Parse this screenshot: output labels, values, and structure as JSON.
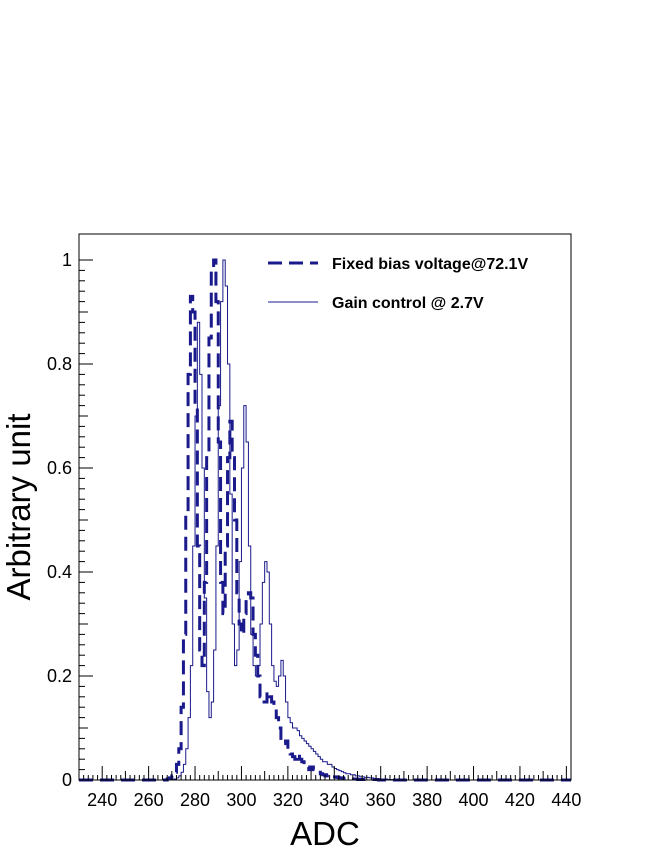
{
  "chart_data": {
    "type": "line",
    "xlabel": "ADC",
    "ylabel": "Arbitrary unit",
    "xlim": [
      230,
      442
    ],
    "ylim": [
      0,
      1.05
    ],
    "xticks": [
      "240",
      "260",
      "280",
      "300",
      "320",
      "340",
      "360",
      "380",
      "400",
      "420",
      "440"
    ],
    "yticks": [
      "0",
      "0.2",
      "0.4",
      "0.6",
      "0.8",
      "1"
    ],
    "grid": false,
    "legend_position": "top-right",
    "bin_width": 1,
    "series": [
      {
        "name": "Fixed bias voltage@72.1V",
        "style": "dashed",
        "color": "#1a1a8c",
        "x_start": 230,
        "values": [
          0,
          0,
          0,
          0,
          0,
          0,
          0,
          0,
          0,
          0,
          0,
          0,
          0,
          0,
          0,
          0,
          0,
          0,
          0,
          0,
          0,
          0,
          0,
          0,
          0,
          0,
          0,
          0,
          0,
          0,
          0,
          0,
          0,
          0,
          0,
          0,
          0,
          0,
          0.002,
          0.004,
          0.008,
          0.015,
          0.03,
          0.06,
          0.14,
          0.28,
          0.52,
          0.78,
          0.93,
          0.9,
          0.72,
          0.45,
          0.25,
          0.22,
          0.38,
          0.62,
          0.85,
          0.98,
          1.0,
          0.92,
          0.65,
          0.38,
          0.32,
          0.45,
          0.62,
          0.69,
          0.62,
          0.5,
          0.36,
          0.3,
          0.28,
          0.32,
          0.35,
          0.36,
          0.35,
          0.28,
          0.24,
          0.2,
          0.16,
          0.15,
          0.15,
          0.17,
          0.16,
          0.15,
          0.14,
          0.12,
          0.1,
          0.08,
          0.07,
          0.075,
          0.06,
          0.05,
          0.045,
          0.04,
          0.05,
          0.04,
          0.035,
          0.03,
          0.025,
          0.02,
          0.025,
          0.02,
          0.015,
          0.015,
          0.012,
          0.01,
          0.008,
          0.01,
          0.008,
          0.006,
          0.006,
          0.005,
          0.004,
          0.004,
          0.003,
          0.003,
          0.002,
          0.002,
          0.002,
          0.002,
          0.001,
          0.001,
          0.001,
          0.001,
          0.001,
          0.001,
          0.001,
          0.001,
          0.001,
          0,
          0,
          0,
          0,
          0,
          0,
          0,
          0,
          0,
          0,
          0,
          0,
          0,
          0,
          0,
          0,
          0,
          0,
          0,
          0,
          0,
          0,
          0,
          0,
          0,
          0,
          0,
          0,
          0,
          0,
          0,
          0,
          0,
          0,
          0,
          0,
          0,
          0,
          0,
          0,
          0,
          0,
          0,
          0,
          0,
          0,
          0,
          0,
          0,
          0,
          0,
          0,
          0,
          0,
          0,
          0,
          0,
          0,
          0,
          0,
          0,
          0,
          0,
          0,
          0,
          0,
          0,
          0,
          0,
          0,
          0,
          0,
          0,
          0,
          0,
          0,
          0,
          0,
          0,
          0,
          0,
          0,
          0,
          0,
          0,
          0,
          0,
          0,
          0,
          0,
          0,
          0,
          0,
          0,
          0,
          0,
          0,
          0,
          0,
          0,
          0,
          0,
          0,
          0,
          0,
          0
        ]
      },
      {
        "name": "Gain control @ 2.7V",
        "style": "solid",
        "color": "#1a1a8c",
        "x_start": 230,
        "values": [
          0,
          0,
          0,
          0,
          0,
          0,
          0,
          0,
          0,
          0,
          0,
          0,
          0,
          0,
          0,
          0,
          0,
          0,
          0,
          0,
          0,
          0,
          0,
          0,
          0,
          0,
          0,
          0,
          0,
          0,
          0,
          0,
          0,
          0,
          0,
          0,
          0,
          0,
          0,
          0,
          0.001,
          0.002,
          0.004,
          0.008,
          0.015,
          0.03,
          0.06,
          0.12,
          0.22,
          0.45,
          0.7,
          0.88,
          0.78,
          0.6,
          0.35,
          0.17,
          0.12,
          0.15,
          0.25,
          0.45,
          0.72,
          0.92,
          1.0,
          0.95,
          0.8,
          0.55,
          0.3,
          0.22,
          0.25,
          0.42,
          0.6,
          0.72,
          0.65,
          0.45,
          0.28,
          0.22,
          0.2,
          0.22,
          0.3,
          0.38,
          0.42,
          0.4,
          0.3,
          0.22,
          0.19,
          0.18,
          0.2,
          0.23,
          0.2,
          0.15,
          0.12,
          0.11,
          0.1,
          0.1,
          0.095,
          0.085,
          0.08,
          0.075,
          0.07,
          0.065,
          0.06,
          0.055,
          0.05,
          0.045,
          0.04,
          0.035,
          0.035,
          0.03,
          0.03,
          0.025,
          0.022,
          0.02,
          0.018,
          0.016,
          0.014,
          0.012,
          0.012,
          0.01,
          0.01,
          0.008,
          0.008,
          0.006,
          0.006,
          0.005,
          0.005,
          0.004,
          0.004,
          0.003,
          0.003,
          0.002,
          0.002,
          0.002,
          0.002,
          0.001,
          0.001,
          0.001,
          0.001,
          0.001,
          0.001,
          0.001,
          0.001,
          0,
          0,
          0,
          0,
          0,
          0,
          0,
          0,
          0,
          0,
          0,
          0,
          0,
          0,
          0,
          0,
          0,
          0,
          0,
          0,
          0,
          0,
          0,
          0,
          0,
          0,
          0,
          0,
          0,
          0,
          0,
          0,
          0,
          0,
          0,
          0,
          0,
          0,
          0,
          0,
          0,
          0,
          0,
          0,
          0,
          0,
          0,
          0,
          0,
          0,
          0,
          0,
          0,
          0,
          0,
          0,
          0,
          0,
          0,
          0,
          0,
          0,
          0,
          0,
          0,
          0,
          0,
          0,
          0,
          0,
          0,
          0,
          0,
          0,
          0,
          0,
          0,
          0,
          0,
          0,
          0,
          0
        ]
      }
    ]
  }
}
